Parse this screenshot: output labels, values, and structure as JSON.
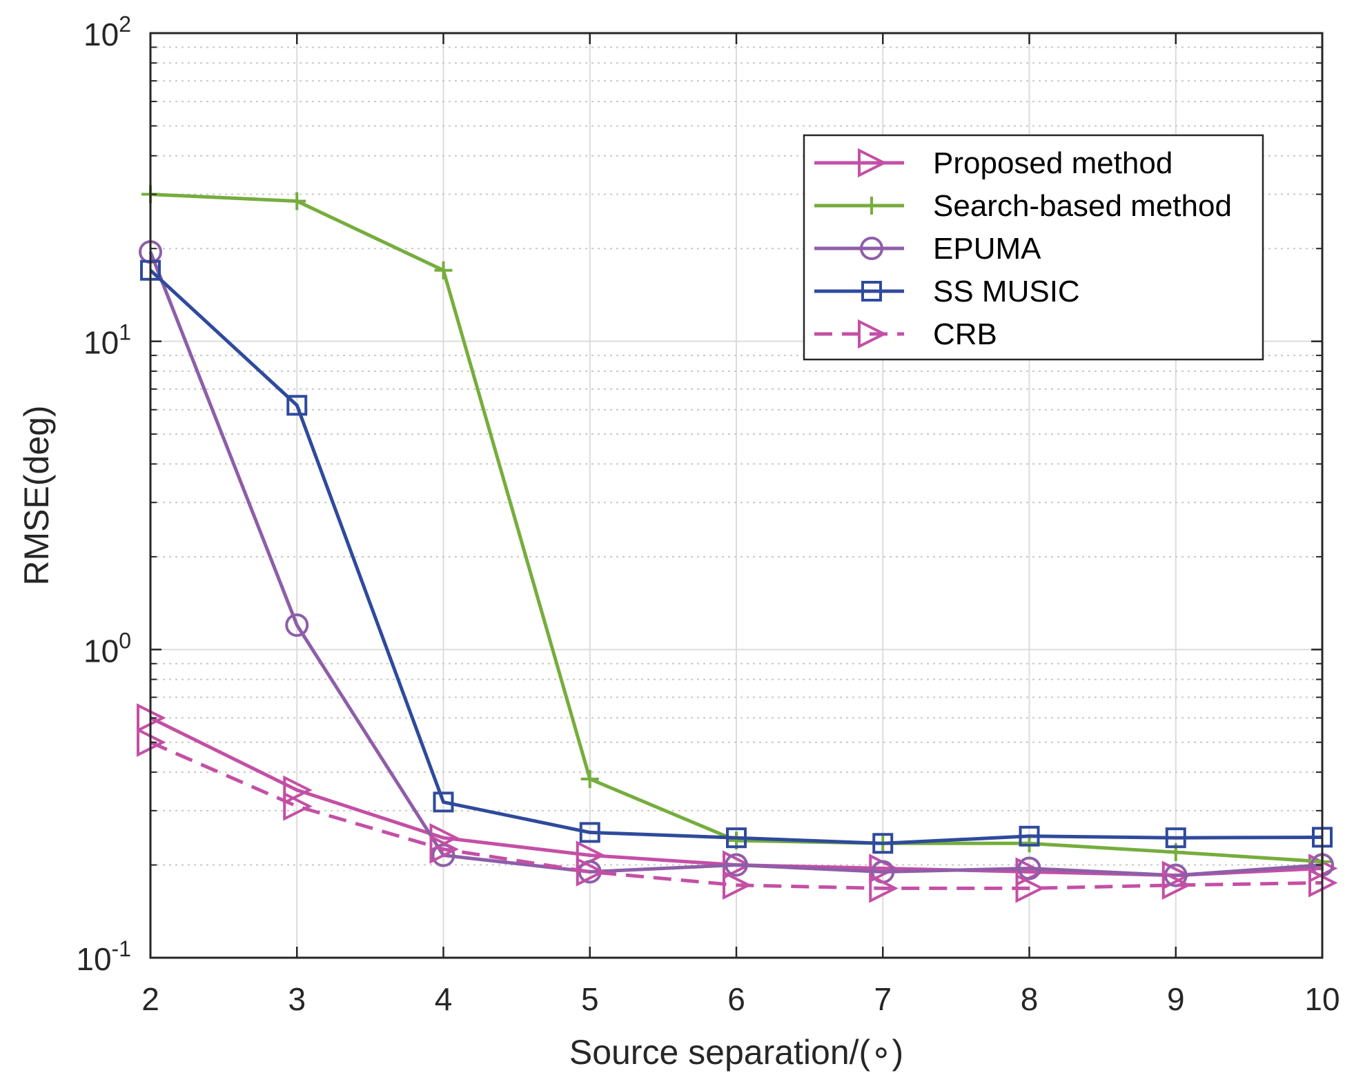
{
  "chart_data": {
    "type": "line",
    "title": "",
    "xlabel": "Source separation/(∘)",
    "ylabel": "RMSE(deg)",
    "yscale": "log",
    "xlim": [
      2,
      10
    ],
    "ylim": [
      0.1,
      100
    ],
    "grid": true,
    "legend_position": "top-right",
    "x": [
      2,
      3,
      4,
      5,
      6,
      7,
      8,
      9,
      10
    ],
    "x_tick_labels": [
      "2",
      "3",
      "4",
      "5",
      "6",
      "7",
      "8",
      "9",
      "10"
    ],
    "y_ticks": [
      {
        "value": 0.1,
        "base": "10",
        "exp": "-1"
      },
      {
        "value": 1,
        "base": "10",
        "exp": "0"
      },
      {
        "value": 10,
        "base": "10",
        "exp": "1"
      },
      {
        "value": 100,
        "base": "10",
        "exp": "2"
      }
    ],
    "series": [
      {
        "name": "Proposed method",
        "color": "#c44fa5",
        "dash": "solid",
        "marker": "triangle-right",
        "values": [
          0.6,
          0.35,
          0.245,
          0.215,
          0.2,
          0.195,
          0.19,
          0.185,
          0.195
        ]
      },
      {
        "name": "Search-based method",
        "color": "#76ad3d",
        "dash": "solid",
        "marker": "plus",
        "values": [
          30,
          28.5,
          17,
          0.38,
          0.24,
          0.235,
          0.235,
          0.22,
          0.205
        ]
      },
      {
        "name": "EPUMA",
        "color": "#8e5ea8",
        "dash": "solid",
        "marker": "circle",
        "values": [
          19.5,
          1.2,
          0.215,
          0.19,
          0.2,
          0.19,
          0.195,
          0.185,
          0.2
        ]
      },
      {
        "name": "SS MUSIC",
        "color": "#2f4a9c",
        "dash": "solid",
        "marker": "square",
        "values": [
          17,
          6.2,
          0.32,
          0.255,
          0.245,
          0.235,
          0.248,
          0.245,
          0.246
        ]
      },
      {
        "name": "CRB",
        "color": "#c44fa5",
        "dash": "dashed",
        "marker": "triangle-right",
        "values": [
          0.5,
          0.31,
          0.225,
          0.19,
          0.172,
          0.168,
          0.168,
          0.172,
          0.175
        ]
      }
    ]
  }
}
